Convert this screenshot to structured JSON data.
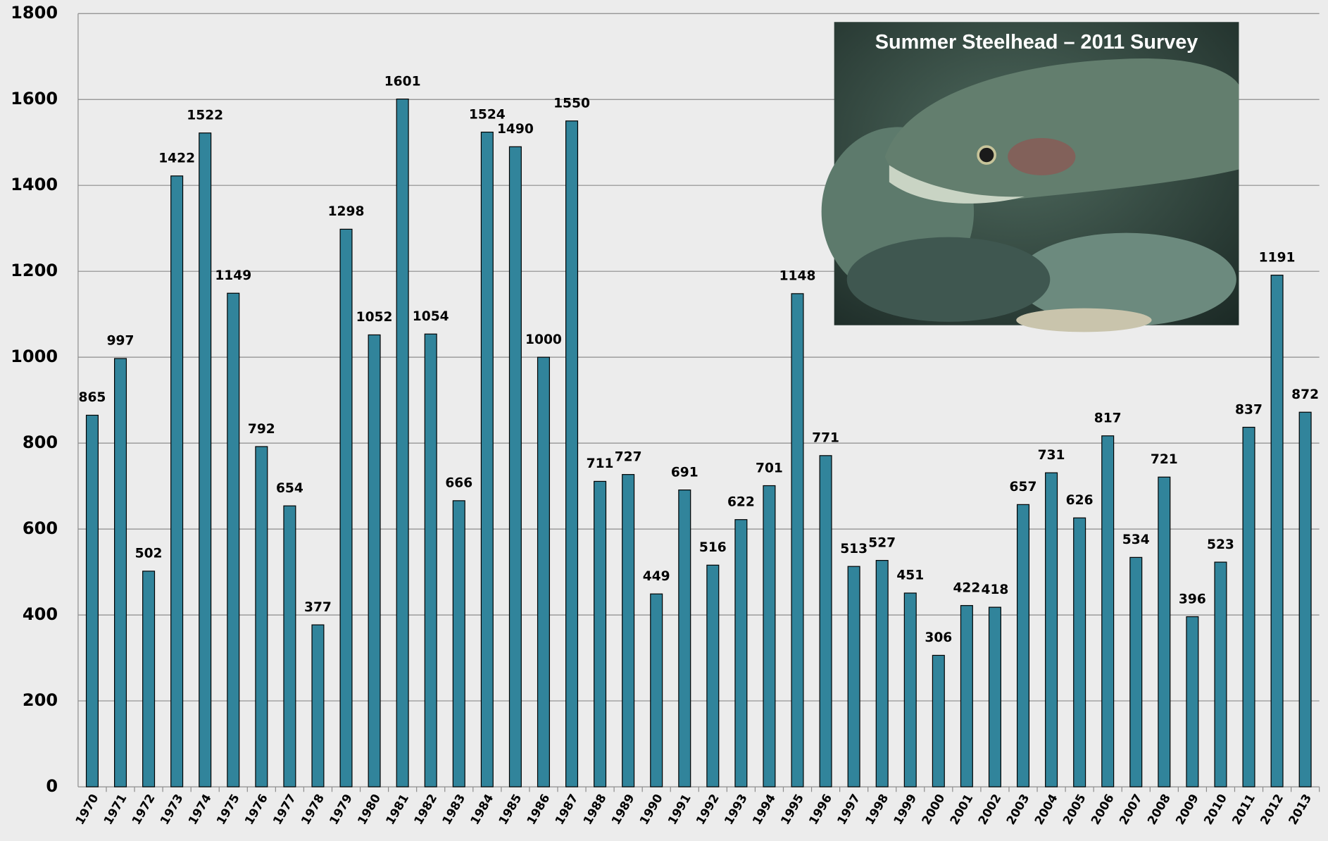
{
  "chart_data": {
    "type": "bar",
    "inset_caption": "Summer Steelhead – 2011 Survey",
    "categories": [
      "1970",
      "1971",
      "1972",
      "1973",
      "1974",
      "1975",
      "1976",
      "1977",
      "1978",
      "1979",
      "1980",
      "1981",
      "1982",
      "1983",
      "1984",
      "1985",
      "1986",
      "1987",
      "1988",
      "1989",
      "1990",
      "1991",
      "1992",
      "1993",
      "1994",
      "1995",
      "1996",
      "1997",
      "1998",
      "1999",
      "2000",
      "2001",
      "2002",
      "2003",
      "2004",
      "2005",
      "2006",
      "2007",
      "2008",
      "2009",
      "2010",
      "2011",
      "2012",
      "2013"
    ],
    "values": [
      865,
      997,
      502,
      1422,
      1522,
      1149,
      792,
      654,
      377,
      1298,
      1052,
      1601,
      1054,
      666,
      1524,
      1490,
      1000,
      1550,
      711,
      727,
      449,
      691,
      516,
      622,
      701,
      1148,
      771,
      513,
      527,
      451,
      306,
      422,
      418,
      657,
      731,
      626,
      817,
      534,
      721,
      396,
      523,
      837,
      1191,
      872
    ],
    "color": "#31849b",
    "ylim": [
      0,
      1800
    ],
    "yticks": [
      0,
      200,
      400,
      600,
      800,
      1000,
      1200,
      1400,
      1600,
      1800
    ],
    "grid": true
  }
}
